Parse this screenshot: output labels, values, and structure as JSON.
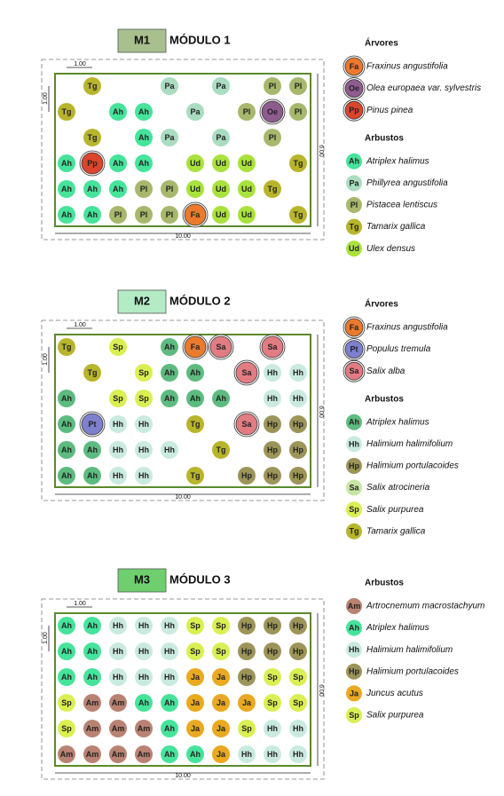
{
  "modules": [
    {
      "code": "M1",
      "title": "MÓDULO 1",
      "header_color": "#a7c08e",
      "dims": {
        "cell": "1.00",
        "height": "6.00",
        "width": "10.00"
      },
      "grid": [
        [
          null,
          "Tg",
          null,
          null,
          "Pa",
          null,
          "Pa",
          null,
          "Pl",
          "Pl"
        ],
        [
          "Tg",
          null,
          "Ah",
          "Ah",
          null,
          "Pa",
          null,
          "Pl",
          "Oe",
          "Pl"
        ],
        [
          null,
          "Tg",
          null,
          "Ah",
          "Pa",
          null,
          "Pa",
          null,
          "Pl",
          null
        ],
        [
          "Ah",
          "Pp",
          "Ah",
          "Ah",
          null,
          "Ud",
          "Ud",
          "Ud",
          null,
          "Tg"
        ],
        [
          "Ah",
          "Ah",
          "Ah",
          "Pl",
          "Pl",
          "Ud",
          "Ud",
          "Ud",
          "Tg",
          null
        ],
        [
          "Ah",
          "Ah",
          "Pl",
          "Pl",
          "Pl",
          "Fa",
          "Ud",
          "Ud",
          null,
          "Tg"
        ]
      ],
      "legend": [
        {
          "heading": "Árvores",
          "size": "large",
          "items": [
            {
              "code": "Fa",
              "name": "Fraxinus angustifolia",
              "color": "#ec7a2c"
            },
            {
              "code": "Oe",
              "name": "Olea europaea var. sylvestris",
              "color": "#8e5c8e"
            },
            {
              "code": "Pp",
              "name": "Pinus pinea",
              "color": "#dc452d"
            }
          ]
        },
        {
          "heading": "Arbustos",
          "size": "small",
          "items": [
            {
              "code": "Ah",
              "name": "Atriplex halimus",
              "color": "#46e39b"
            },
            {
              "code": "Pa",
              "name": "Phillyrea angustifolia",
              "color": "#a9dcc0"
            },
            {
              "code": "Pl",
              "name": "Pistacea lentiscus",
              "color": "#a7b86c"
            },
            {
              "code": "Tg",
              "name": "Tamarix gallica",
              "color": "#b8b52c"
            },
            {
              "code": "Ud",
              "name": "Ulex densus",
              "color": "#a9e23c"
            }
          ]
        }
      ]
    },
    {
      "code": "M2",
      "title": "MÓDULO 2",
      "header_color": "#b3ebc4",
      "dims": {
        "cell": "1.00",
        "height": "6.00",
        "width": "10.00"
      },
      "grid": [
        [
          "Tg",
          null,
          "Sp",
          null,
          "Ah",
          "Fa",
          "Sa",
          null,
          "Sa",
          null
        ],
        [
          null,
          "Tg",
          null,
          "Sp",
          "Ah",
          "Ah",
          null,
          "Sa",
          "Hh",
          "Hh"
        ],
        [
          "Ah",
          null,
          "Sp",
          "Sp",
          "Ah",
          "Ah",
          "Ah",
          null,
          "Hh",
          "Hh"
        ],
        [
          "Ah",
          "Pt",
          "Hh",
          "Hh",
          null,
          "Tg",
          null,
          "Sa",
          "Hp",
          "Hp"
        ],
        [
          "Ah",
          "Ah",
          "Hh",
          "Hh",
          "Hh",
          null,
          "Tg",
          null,
          "Hp",
          "Hp"
        ],
        [
          "Ah",
          "Ah",
          "Hh",
          "Hh",
          null,
          "Tg",
          null,
          "Hp",
          "Hp",
          "Hp"
        ]
      ],
      "legend": [
        {
          "heading": "Árvores",
          "size": "large",
          "items": [
            {
              "code": "Fa",
              "name": "Fraxinus angustifolia",
              "color": "#ec7a2c"
            },
            {
              "code": "Pt",
              "name": "Populus tremula",
              "color": "#7d80cc"
            },
            {
              "code": "Sa",
              "name": "Salix alba",
              "color": "#e27c83"
            }
          ]
        },
        {
          "heading": "Arbustos",
          "size": "small",
          "items": [
            {
              "code": "Ah",
              "name": "Atriplex halimus",
              "color": "#5dbb7f"
            },
            {
              "code": "Hh",
              "name": "Halimium halimifolium",
              "color": "#c9ebdf"
            },
            {
              "code": "Hp",
              "name": "Halimium portulacoides",
              "color": "#9c9459"
            },
            {
              "code": "Sa",
              "name": "Salix atrocineria",
              "color": "#c8e6a2"
            },
            {
              "code": "Sp",
              "name": "Salix purpurea",
              "color": "#d9ef52"
            },
            {
              "code": "Tg",
              "name": "Tamarix gallica",
              "color": "#b8b52c"
            }
          ]
        }
      ]
    },
    {
      "code": "M3",
      "title": "MÓDULO 3",
      "header_color": "#6fcf6f",
      "dims": {
        "cell": "1.00",
        "height": "6.00",
        "width": "10.00"
      },
      "grid": [
        [
          "Ah",
          "Ah",
          "Hh",
          "Hh",
          "Hh",
          "Sp",
          "Sp",
          "Hp",
          "Hp",
          "Hp"
        ],
        [
          "Ah",
          "Ah",
          "Hh",
          "Hh",
          "Hh",
          "Sp",
          "Sp",
          "Hp",
          "Hp",
          "Hp"
        ],
        [
          "Ah",
          "Ah",
          "Hh",
          "Hh",
          "Hh",
          "Ja",
          "Ja",
          "Hp",
          "Sp",
          "Sp"
        ],
        [
          "Sp",
          "Am",
          "Am",
          "Ah",
          "Ah",
          "Ja",
          "Ja",
          "Ja",
          "Sp",
          "Sp"
        ],
        [
          "Sp",
          "Am",
          "Am",
          "Am",
          "Ah",
          "Ja",
          "Ja",
          "Sp",
          "Hh",
          "Hh"
        ],
        [
          "Am",
          "Am",
          "Am",
          "Am",
          "Ah",
          "Ah",
          "Ja",
          "Hh",
          "Hh",
          "Hh"
        ]
      ],
      "legend": [
        {
          "heading": "Arbustos",
          "size": "small",
          "items": [
            {
              "code": "Am",
              "name": "Artrocnemum macrostachyum",
              "color": "#b98272"
            },
            {
              "code": "Ah",
              "name": "Atriplex halimus",
              "color": "#46e39b"
            },
            {
              "code": "Hh",
              "name": "Halimium halimifolium",
              "color": "#c9ebdf"
            },
            {
              "code": "Hp",
              "name": "Halimium portulacoides",
              "color": "#9c9459"
            },
            {
              "code": "Ja",
              "name": "Juncus acutus",
              "color": "#e9a921"
            },
            {
              "code": "Sp",
              "name": "Salix purpurea",
              "color": "#d9ef52"
            }
          ]
        }
      ]
    }
  ]
}
